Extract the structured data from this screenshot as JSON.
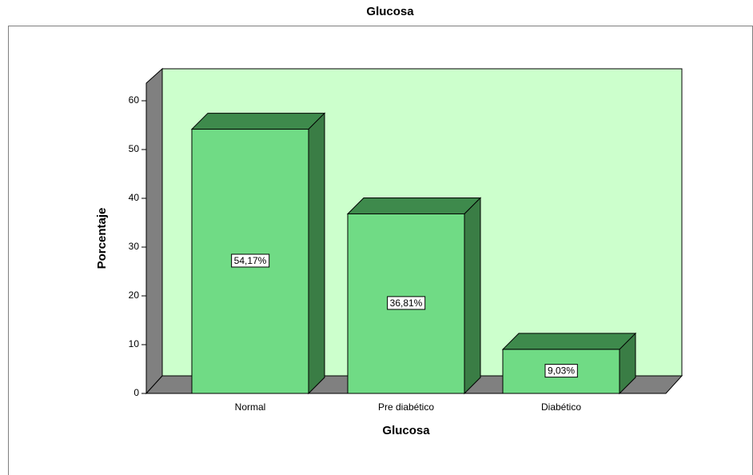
{
  "chart_data": {
    "type": "bar",
    "title": "Glucosa",
    "xlabel": "Glucosa",
    "ylabel": "Porcentaje",
    "categories": [
      "Normal",
      "Pre diabético",
      "Diabético"
    ],
    "values": [
      54.17,
      36.81,
      9.03
    ],
    "value_labels": [
      "54,17%",
      "36,81%",
      "9,03%"
    ],
    "color": "#70db85",
    "ylim": [
      0,
      60
    ],
    "yticks": [
      0,
      10,
      20,
      30,
      40,
      50,
      60
    ]
  }
}
